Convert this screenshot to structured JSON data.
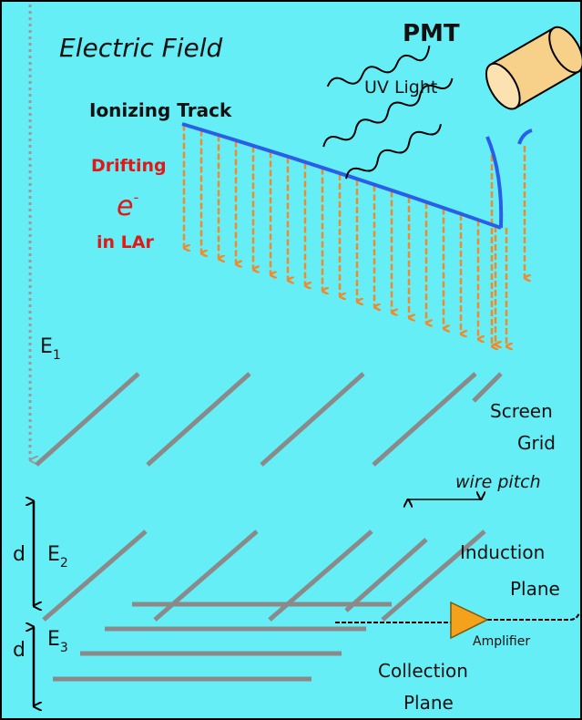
{
  "field": "Electric Field",
  "pmt": "PMT",
  "uv_light": "UV Light",
  "track": "Ionizing Track",
  "drifting": {
    "line1": "Drifting",
    "electron": "e",
    "charge": "-",
    "line3": "in LAr"
  },
  "e1": {
    "main": "E",
    "sub": "1"
  },
  "e2": {
    "main": "E",
    "sub": "2"
  },
  "e3": {
    "main": "E",
    "sub": "3"
  },
  "d_upper": "d",
  "d_lower": "d",
  "screen_grid": [
    "Screen",
    "Grid"
  ],
  "wire_pitch": "wire pitch",
  "induction_plane": [
    "Induction",
    "Plane"
  ],
  "amplifier": "Amplifier",
  "collection_plane": [
    "Collection",
    "Plane"
  ]
}
